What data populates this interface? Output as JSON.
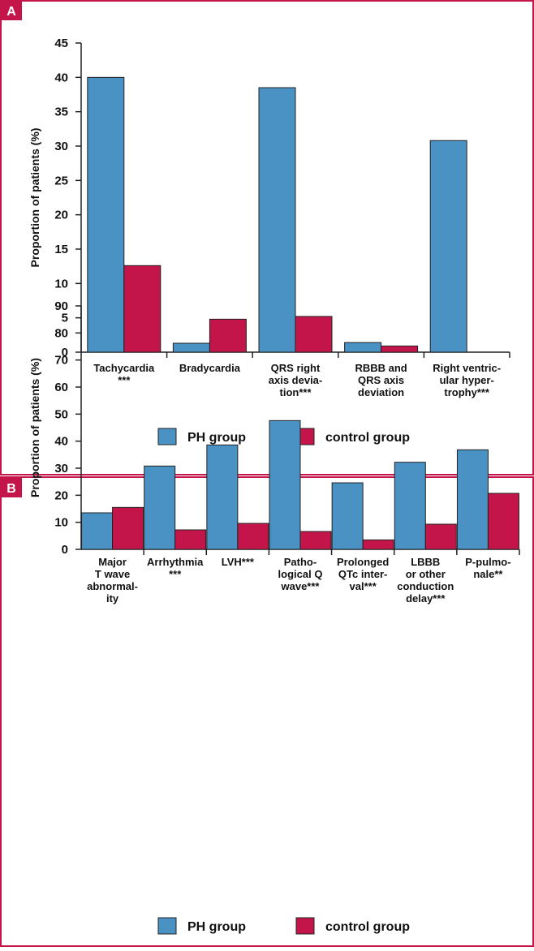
{
  "chart_data": [
    {
      "type": "bar",
      "panel_label": "A",
      "y_label": "Proportion of patients (%)",
      "categories": [
        "Tachycardia\n***",
        "Bradycardia",
        "QRS right\naxis devia-\ntion***",
        "RBBB and\nQRS axis\ndeviation",
        "Right ventric-\nular hyper-\ntrophy***"
      ],
      "series": [
        {
          "name": "PH group",
          "color": "#4a92c4",
          "values": [
            40,
            1.3,
            38.5,
            1.4,
            30.8
          ]
        },
        {
          "name": "control group",
          "color": "#c3154a",
          "values": [
            12.6,
            4.8,
            5.2,
            0.9,
            0
          ]
        }
      ],
      "ylim": [
        0,
        45
      ],
      "yticks": [
        0,
        5,
        10,
        15,
        20,
        25,
        30,
        35,
        40,
        45
      ],
      "legend": "bottom"
    },
    {
      "type": "bar",
      "panel_label": "B",
      "y_label": "Proportion of patients (%)",
      "categories": [
        "Major\nT wave\nabnormal-\nity",
        "Arrhythmia\n***",
        "LVH***",
        "Patho-\nlogical Q\nwave***",
        "Prolonged\nQTc inter-\nval***",
        "LBBB\nor other\nconduction\ndelay***",
        "P-pulmo-\nnale**"
      ],
      "series": [
        {
          "name": "PH group",
          "color": "#4a92c4",
          "values": [
            13.5,
            30.8,
            38.6,
            47.6,
            24.6,
            32.2,
            36.8
          ]
        },
        {
          "name": "control group",
          "color": "#c3154a",
          "values": [
            15.5,
            7.2,
            9.6,
            6.6,
            3.5,
            9.3,
            20.7
          ]
        }
      ],
      "ylim": [
        0,
        90
      ],
      "yticks": [
        0,
        10,
        20,
        30,
        40,
        50,
        60,
        70,
        80,
        90
      ],
      "legend": "bottom"
    }
  ]
}
